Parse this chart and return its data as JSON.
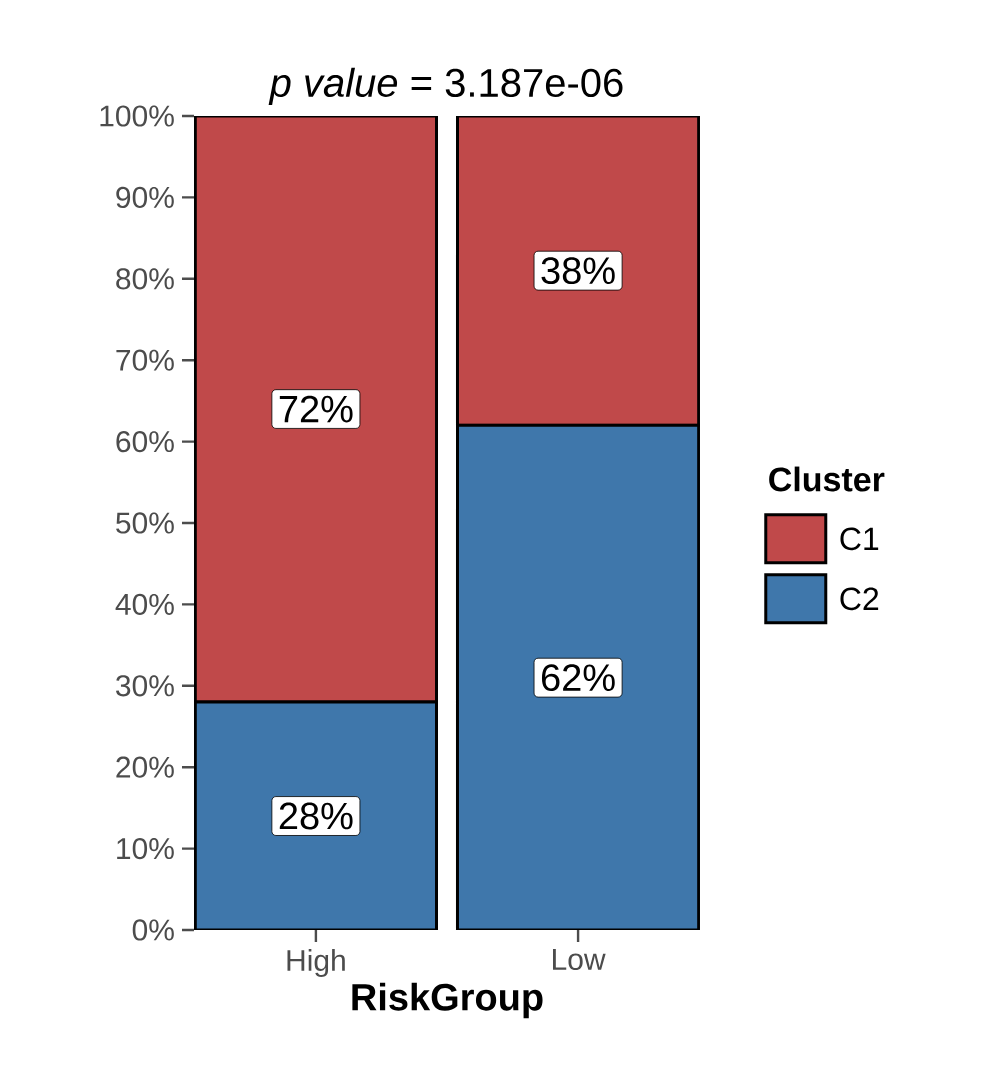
{
  "chart_data": {
    "type": "bar",
    "title": "*p value* = 3.187e-06",
    "xlabel": "RiskGroup",
    "legend_title": "Cluster",
    "stacked": true,
    "categories": [
      "High",
      "Low"
    ],
    "series": [
      {
        "name": "C2",
        "color": "#3f77ab",
        "values": [
          28,
          62
        ],
        "value_labels": [
          "28%",
          "62%"
        ]
      },
      {
        "name": "C1",
        "color": "#c0494a",
        "values": [
          72,
          38
        ],
        "value_labels": [
          "72%",
          "38%"
        ]
      }
    ],
    "ylim": [
      0,
      100
    ],
    "yticks": [
      {
        "value": 0,
        "label": "0%"
      },
      {
        "value": 10,
        "label": "10%"
      },
      {
        "value": 20,
        "label": "20%"
      },
      {
        "value": 30,
        "label": "30%"
      },
      {
        "value": 40,
        "label": "40%"
      },
      {
        "value": 50,
        "label": "50%"
      },
      {
        "value": 60,
        "label": "60%"
      },
      {
        "value": 70,
        "label": "70%"
      },
      {
        "value": 80,
        "label": "80%"
      },
      {
        "value": 90,
        "label": "90%"
      },
      {
        "value": 100,
        "label": "100%"
      }
    ],
    "legend": "right"
  }
}
